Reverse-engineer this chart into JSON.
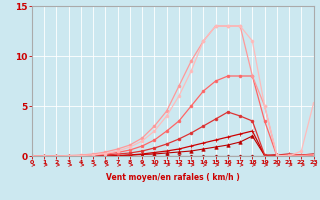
{
  "xlabel": "Vent moyen/en rafales ( km/h )",
  "xlim": [
    0,
    23
  ],
  "ylim": [
    0,
    15
  ],
  "yticks": [
    0,
    5,
    10,
    15
  ],
  "xticks": [
    0,
    1,
    2,
    3,
    4,
    5,
    6,
    7,
    8,
    9,
    10,
    11,
    12,
    13,
    14,
    15,
    16,
    17,
    18,
    19,
    20,
    21,
    22,
    23
  ],
  "bg_color": "#cce8f0",
  "grid_color": "#ffffff",
  "lines": [
    {
      "x": [
        0,
        1,
        2,
        3,
        4,
        5,
        6,
        7,
        8,
        9,
        10,
        11,
        12,
        13,
        14,
        15,
        16,
        17,
        18,
        19,
        20,
        21,
        22,
        23
      ],
      "y": [
        0,
        0,
        0,
        0,
        0,
        0,
        0,
        0,
        0,
        0,
        0,
        0,
        0,
        0,
        0,
        0,
        0,
        0,
        0,
        0,
        0,
        0,
        0,
        0
      ],
      "color": "#990000",
      "linewidth": 0.8,
      "marker": "D",
      "markersize": 1.5,
      "linestyle": "-"
    },
    {
      "x": [
        0,
        1,
        2,
        3,
        4,
        5,
        6,
        7,
        8,
        9,
        10,
        11,
        12,
        13,
        14,
        15,
        16,
        17,
        18,
        19,
        20,
        21,
        22,
        23
      ],
      "y": [
        0,
        0,
        0,
        0,
        0,
        0,
        0,
        0,
        0.1,
        0.15,
        0.2,
        0.3,
        0.4,
        0.5,
        0.7,
        0.9,
        1.1,
        1.4,
        2.0,
        0.05,
        0.1,
        0.15,
        0.05,
        0.1
      ],
      "color": "#bb0000",
      "linewidth": 0.8,
      "marker": "^",
      "markersize": 2.5,
      "linestyle": "-"
    },
    {
      "x": [
        0,
        1,
        2,
        3,
        4,
        5,
        6,
        7,
        8,
        9,
        10,
        11,
        12,
        13,
        14,
        15,
        16,
        17,
        18,
        19,
        20,
        21,
        22,
        23
      ],
      "y": [
        0,
        0,
        0,
        0,
        0,
        0,
        0,
        0.05,
        0.1,
        0.2,
        0.35,
        0.5,
        0.7,
        1.0,
        1.3,
        1.6,
        1.9,
        2.2,
        2.5,
        0.05,
        0.1,
        0.2,
        0.1,
        0.2
      ],
      "color": "#cc0000",
      "linewidth": 0.9,
      "marker": "+",
      "markersize": 3,
      "linestyle": "-"
    },
    {
      "x": [
        0,
        1,
        2,
        3,
        4,
        5,
        6,
        7,
        8,
        9,
        10,
        11,
        12,
        13,
        14,
        15,
        16,
        17,
        18,
        19,
        20,
        21,
        22,
        23
      ],
      "y": [
        0,
        0,
        0,
        0,
        0,
        0.05,
        0.1,
        0.2,
        0.3,
        0.5,
        0.8,
        1.2,
        1.7,
        2.3,
        3.0,
        3.7,
        4.4,
        4.0,
        3.5,
        0.1,
        0,
        0.15,
        0.05,
        0.1
      ],
      "color": "#dd3333",
      "linewidth": 0.9,
      "marker": "o",
      "markersize": 2,
      "linestyle": "-"
    },
    {
      "x": [
        0,
        1,
        2,
        3,
        4,
        5,
        6,
        7,
        8,
        9,
        10,
        11,
        12,
        13,
        14,
        15,
        16,
        17,
        18,
        19,
        20,
        21,
        22,
        23
      ],
      "y": [
        0,
        0,
        0,
        0,
        0.05,
        0.1,
        0.2,
        0.35,
        0.6,
        1.0,
        1.6,
        2.5,
        3.5,
        5.0,
        6.5,
        7.5,
        8.0,
        8.0,
        8.0,
        3.5,
        0,
        0.1,
        0.05,
        0.15
      ],
      "color": "#ff6666",
      "linewidth": 0.9,
      "marker": "o",
      "markersize": 2,
      "linestyle": "-"
    },
    {
      "x": [
        0,
        1,
        2,
        3,
        4,
        5,
        6,
        7,
        8,
        9,
        10,
        11,
        12,
        13,
        14,
        15,
        16,
        17,
        18,
        19,
        20,
        21,
        22,
        23
      ],
      "y": [
        0,
        0,
        0,
        0.05,
        0.1,
        0.2,
        0.4,
        0.7,
        1.1,
        1.8,
        3.0,
        4.5,
        7.0,
        9.5,
        11.5,
        13.0,
        13.0,
        13.0,
        8.0,
        5.0,
        0,
        0.1,
        0.05,
        0.1
      ],
      "color": "#ff9999",
      "linewidth": 0.9,
      "marker": "o",
      "markersize": 2,
      "linestyle": "-"
    },
    {
      "x": [
        0,
        1,
        2,
        3,
        4,
        5,
        6,
        7,
        8,
        9,
        10,
        11,
        12,
        13,
        14,
        15,
        16,
        17,
        18,
        19,
        20,
        21,
        22,
        23
      ],
      "y": [
        0,
        0,
        0,
        0,
        0.05,
        0.1,
        0.25,
        0.5,
        0.9,
        1.5,
        2.5,
        4.0,
        6.0,
        8.5,
        11.5,
        13.0,
        13.0,
        13.0,
        11.5,
        5.0,
        0.1,
        0,
        0.5,
        5.3
      ],
      "color": "#ffbbbb",
      "linewidth": 0.9,
      "marker": "o",
      "markersize": 2,
      "linestyle": "-"
    }
  ],
  "arrow_color": "#cc0000",
  "xlabel_color": "#cc0000",
  "tick_color": "#cc0000",
  "axis_color": "#aaaaaa",
  "figwidth": 3.2,
  "figheight": 2.0,
  "dpi": 100
}
